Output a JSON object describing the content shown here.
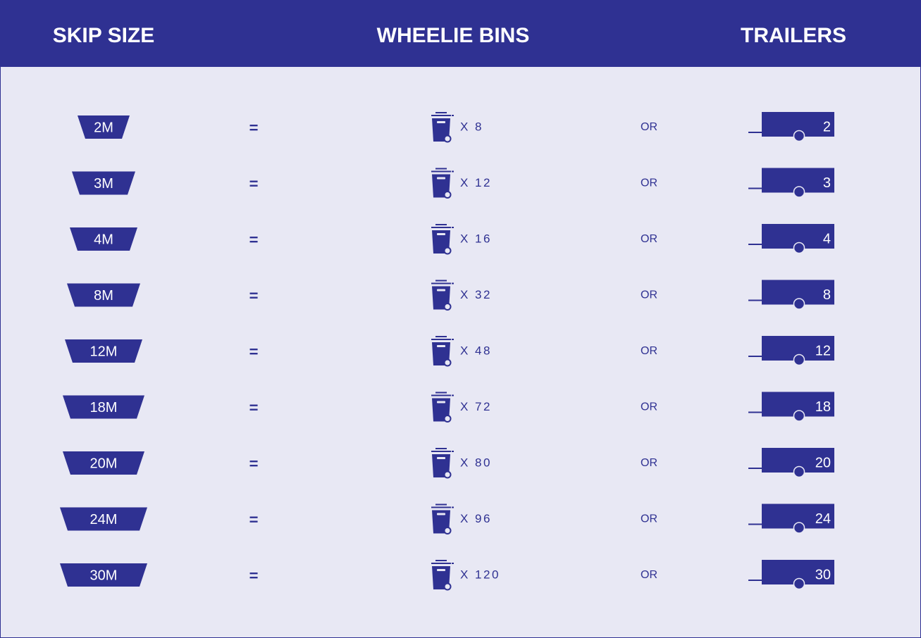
{
  "header": {
    "skip_size": "SKIP SIZE",
    "wheelie_bins": "WHEELIE BINS",
    "trailers": "TRAILERS"
  },
  "rows": [
    {
      "skip": "2M",
      "equals": "=",
      "bins": "X 8",
      "or": "OR",
      "trailer": "2"
    },
    {
      "skip": "3M",
      "equals": "=",
      "bins": "X 12",
      "or": "OR",
      "trailer": "3"
    },
    {
      "skip": "4M",
      "equals": "=",
      "bins": "X 16",
      "or": "OR",
      "trailer": "4"
    },
    {
      "skip": "8M",
      "equals": "=",
      "bins": "X 32",
      "or": "OR",
      "trailer": "8"
    },
    {
      "skip": "12M",
      "equals": "=",
      "bins": "X 48",
      "or": "OR",
      "trailer": "12"
    },
    {
      "skip": "18M",
      "equals": "=",
      "bins": "X 72",
      "or": "OR",
      "trailer": "18"
    },
    {
      "skip": "20M",
      "equals": "=",
      "bins": "X 80",
      "or": "OR",
      "trailer": "20"
    },
    {
      "skip": "24M",
      "equals": "=",
      "bins": "X 96",
      "or": "OR",
      "trailer": "24"
    },
    {
      "skip": "30M",
      "equals": "=",
      "bins": "X 120",
      "or": "OR",
      "trailer": "30"
    }
  ]
}
